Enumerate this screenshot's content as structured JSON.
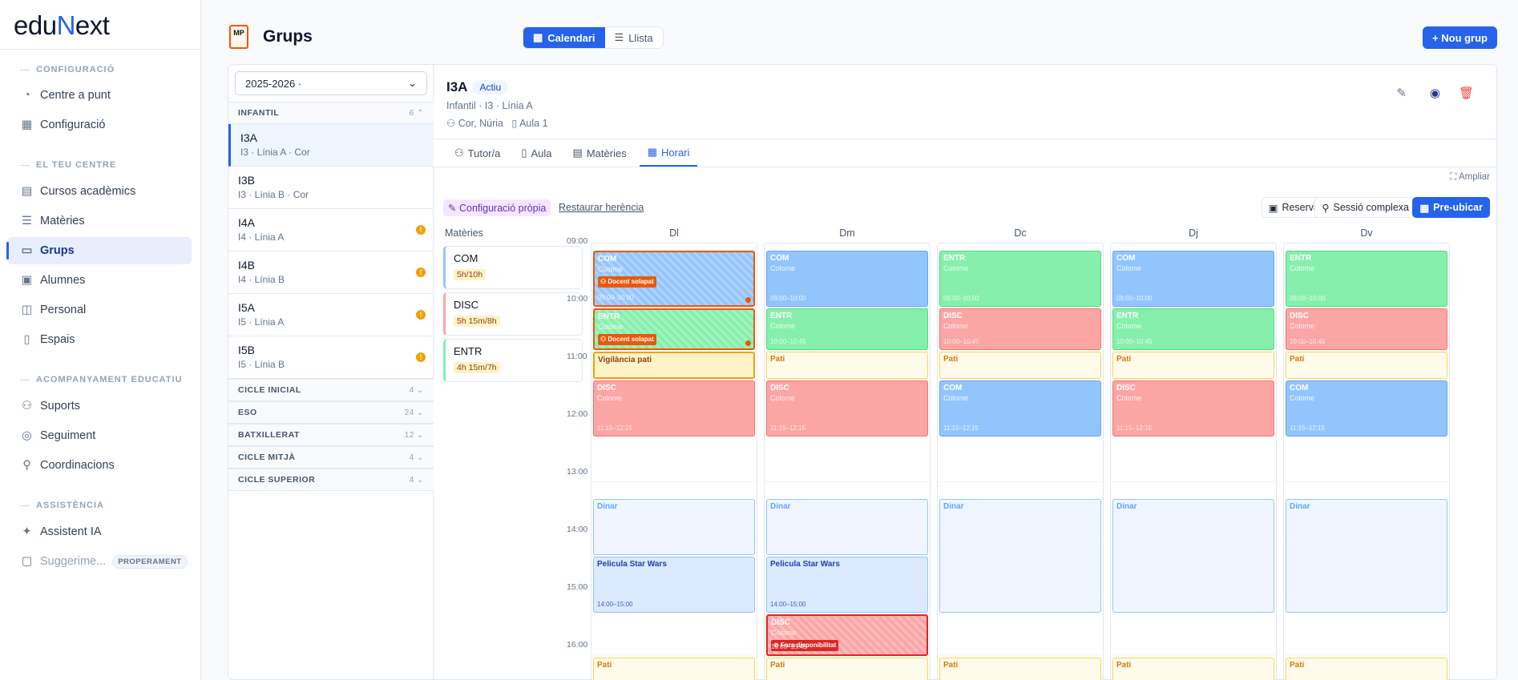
{
  "app": {
    "logo_a": "edu",
    "logo_n": "N",
    "logo_b": "ext"
  },
  "sidebar": {
    "sections": [
      "CONFIGURACIÓ",
      "EL TEU CENTRE",
      "ACOMPANYAMENT EDUCATIU",
      "ASSISTÈNCIA"
    ],
    "items": [
      "Centre a punt",
      "Configuració",
      "Cursos acadèmics",
      "Matèries",
      "Grups",
      "Alumnes",
      "Personal",
      "Espais",
      "Suports",
      "Seguiment",
      "Coordinacions",
      "Assistent IA",
      "Suggerime..."
    ],
    "soon": "PROPERAMENT"
  },
  "header": {
    "mp": "MP",
    "title": "Grups",
    "view_cal": "Calendari",
    "view_list": "Llista",
    "new": "+ Nou grup"
  },
  "groups": {
    "year": "2025-2026 ·",
    "cats": [
      {
        "name": "INFANTIL",
        "count": "6"
      },
      {
        "name": "CICLE INICIAL",
        "count": "4"
      },
      {
        "name": "ESO",
        "count": "24"
      },
      {
        "name": "BATXILLERAT",
        "count": "12"
      },
      {
        "name": "CICLE MITJÀ",
        "count": "4"
      },
      {
        "name": "CICLE SUPERIOR",
        "count": "4"
      }
    ],
    "items": [
      {
        "name": "I3A",
        "sub": "I3 · Línia A · Cor"
      },
      {
        "name": "I3B",
        "sub": "I3 · Línia B · Cor"
      },
      {
        "name": "I4A",
        "sub": "I4 · Línia A"
      },
      {
        "name": "I4B",
        "sub": "I4 · Línia B"
      },
      {
        "name": "I5A",
        "sub": "I5 · Línia A"
      },
      {
        "name": "I5B",
        "sub": "I5 · Línia B"
      }
    ],
    "warn": "!"
  },
  "detail": {
    "name": "I3A",
    "status": "Actiu",
    "sub": "Infantil · I3 · Línia A",
    "tutor": "Cor, Núria",
    "room": "Aula 1",
    "tabs": [
      "Tutor/a",
      "Aula",
      "Matèries",
      "Horari"
    ],
    "ampliar": "Ampliar",
    "config": "Configuració pròpia",
    "restore": "Restaurar herència",
    "btn_reserva": "Reserva",
    "btn_sessio": "Sessió complexa",
    "btn_pre": "Pre-ubicar"
  },
  "subjects": {
    "label": "Matèries",
    "items": [
      {
        "name": "COM",
        "hours": "5h/10h"
      },
      {
        "name": "DISC",
        "hours": "5h 15m/8h"
      },
      {
        "name": "ENTR",
        "hours": "4h 15m/7h"
      }
    ]
  },
  "schedule": {
    "hours": [
      "09:00",
      "10:00",
      "11:00",
      "12:00",
      "13:00",
      "14:00",
      "15:00",
      "16:00"
    ],
    "days": [
      "Dl",
      "Dm",
      "Dc",
      "Dj",
      "Dv"
    ],
    "teacher": "Colome",
    "pati": "Pati",
    "dinar": "Dinar",
    "pelicula": "Pelicula Star Wars",
    "vig": "Vigilància pati",
    "tag_overlap": "Docent solapat",
    "tag_out": "Fora disponibilitat",
    "t_0900": "09:00–10:00",
    "t_1000": "10:00–10:45",
    "t_1115": "11:15–12:15",
    "t_1400": "14:00–15:00",
    "t_1500": "15:00–15:45"
  }
}
